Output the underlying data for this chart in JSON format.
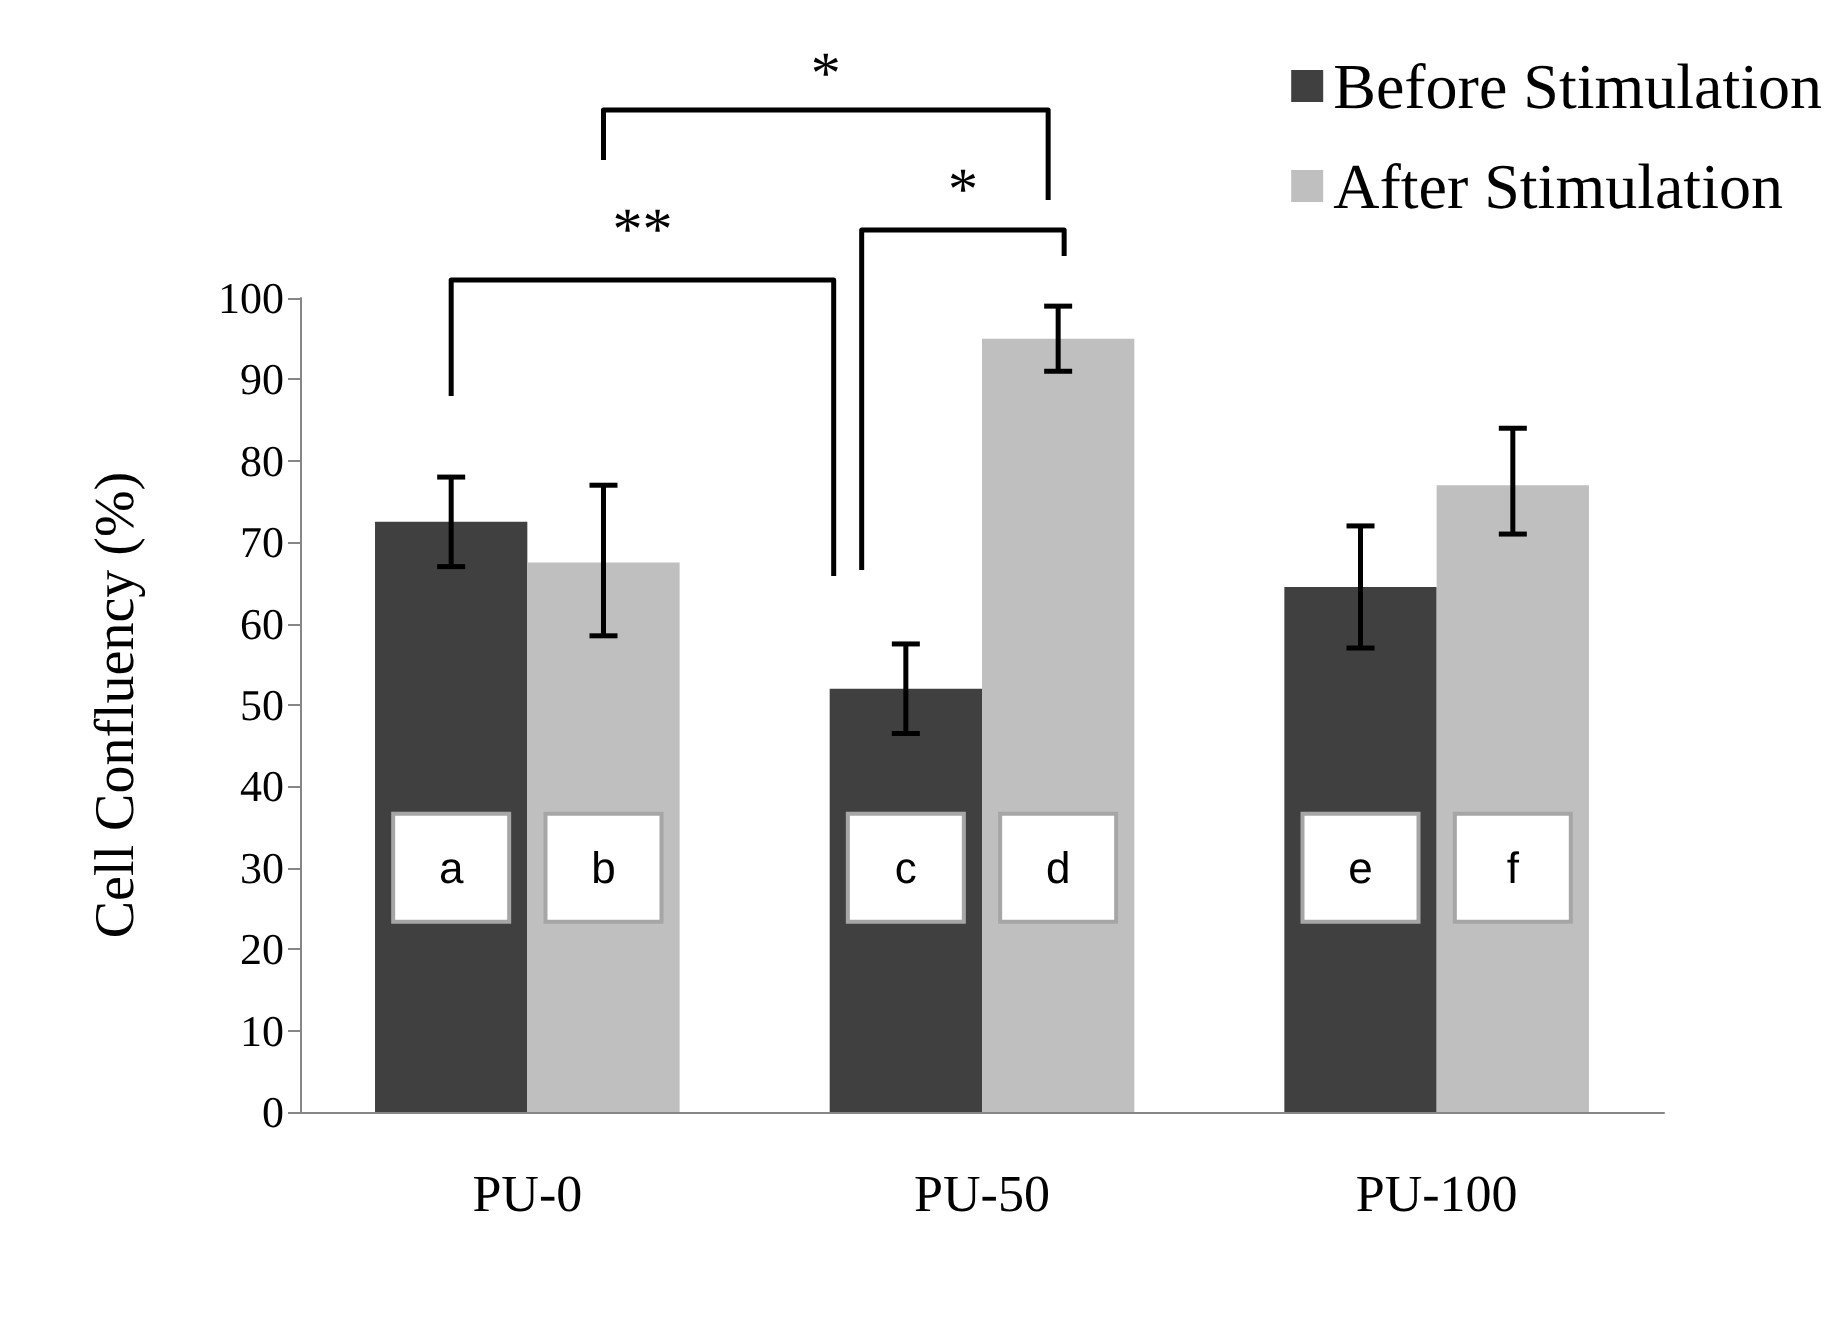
{
  "chart_data": {
    "type": "bar",
    "ylabel": "Cell Confluency (%)",
    "categories": [
      "PU-0",
      "PU-50",
      "PU-100"
    ],
    "series": [
      {
        "name": "Before Stimulation",
        "color": "#404040",
        "values": [
          72.5,
          52,
          64.5
        ],
        "errors": [
          [
            67,
            78
          ],
          [
            46.5,
            57.5
          ],
          [
            57,
            72
          ]
        ]
      },
      {
        "name": "After Stimulation",
        "color": "#bfbfbf",
        "values": [
          67.5,
          95,
          77
        ],
        "errors": [
          [
            58.5,
            77
          ],
          [
            91,
            99
          ],
          [
            71,
            84
          ]
        ]
      }
    ],
    "ylim": [
      0,
      100
    ],
    "yticks": [
      0,
      10,
      20,
      30,
      40,
      50,
      60,
      70,
      80,
      90,
      100
    ],
    "grid": false,
    "legend": "top right",
    "annotations": [
      "**",
      "*",
      "*",
      {
        "text": "a",
        "x": "PU-0",
        "y": 30
      },
      {
        "text": "b",
        "x": "PU-0",
        "y": 30
      },
      {
        "text": "c",
        "x": "PU-50",
        "y": 30
      },
      {
        "text": "d",
        "x": "PU-50",
        "y": 30
      },
      {
        "text": "e",
        "x": "PU-100",
        "y": 30
      },
      {
        "text": "f",
        "x": "PU-100",
        "y": 30
      }
    ]
  }
}
